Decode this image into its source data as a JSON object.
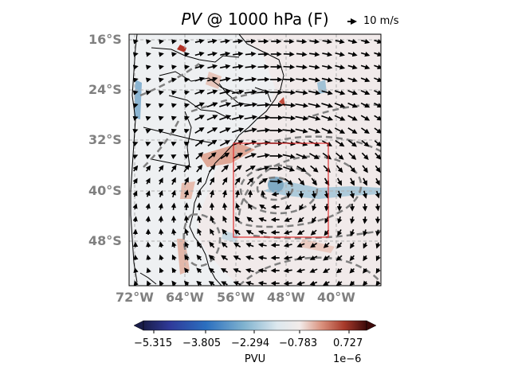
{
  "map": {
    "title_italic": "PV",
    "title_rest": " @ 1000 hPa (F)",
    "reference_vector_label": "10 m/s",
    "lat_labels": [
      "16°S",
      "24°S",
      "32°S",
      "40°S",
      "48°S"
    ],
    "lon_labels": [
      "72°W",
      "64°W",
      "56°W",
      "48°W",
      "40°W"
    ],
    "colorbar": {
      "label": "PVU",
      "ticks": [
        "−5.315",
        "−3.805",
        "−2.294",
        "−0.783",
        "0.727"
      ],
      "scale": "1e−6",
      "colormap": [
        "#1a1d4a",
        "#2f3a9a",
        "#2b6fbf",
        "#7fb2cf",
        "#dde8ee",
        "#f2ecea",
        "#d9907c",
        "#a83a2b",
        "#3d0a0a"
      ]
    },
    "region_box_color": "#e03030",
    "extent": {
      "lon_min": -72,
      "lon_max": -32,
      "lat_min": -56,
      "lat_max": -16
    }
  }
}
